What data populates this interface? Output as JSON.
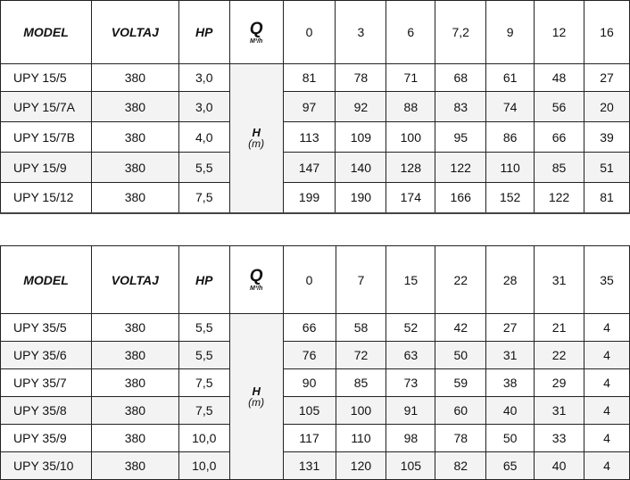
{
  "headers": {
    "model": "MODEL",
    "voltaj": "VOLTAJ",
    "hp": "HP",
    "q_symbol": "Q",
    "q_unit": "M³/h",
    "h_symbol": "H",
    "h_unit": "(m)"
  },
  "table1": {
    "q_values": [
      "0",
      "3",
      "6",
      "7,2",
      "9",
      "12",
      "16"
    ],
    "rows": [
      {
        "model": "UPY 15/5",
        "voltaj": "380",
        "hp": "3,0",
        "h": [
          "81",
          "78",
          "71",
          "68",
          "61",
          "48",
          "27"
        ]
      },
      {
        "model": "UPY 15/7A",
        "voltaj": "380",
        "hp": "3,0",
        "h": [
          "97",
          "92",
          "88",
          "83",
          "74",
          "56",
          "20"
        ]
      },
      {
        "model": "UPY 15/7B",
        "voltaj": "380",
        "hp": "4,0",
        "h": [
          "113",
          "109",
          "100",
          "95",
          "86",
          "66",
          "39"
        ]
      },
      {
        "model": "UPY 15/9",
        "voltaj": "380",
        "hp": "5,5",
        "h": [
          "147",
          "140",
          "128",
          "122",
          "110",
          "85",
          "51"
        ]
      },
      {
        "model": "UPY 15/12",
        "voltaj": "380",
        "hp": "7,5",
        "h": [
          "199",
          "190",
          "174",
          "166",
          "152",
          "122",
          "81"
        ]
      }
    ]
  },
  "table2": {
    "q_values": [
      "0",
      "7",
      "15",
      "22",
      "28",
      "31",
      "35"
    ],
    "rows": [
      {
        "model": "UPY 35/5",
        "voltaj": "380",
        "hp": "5,5",
        "h": [
          "66",
          "58",
          "52",
          "42",
          "27",
          "21",
          "4"
        ]
      },
      {
        "model": "UPY 35/6",
        "voltaj": "380",
        "hp": "5,5",
        "h": [
          "76",
          "72",
          "63",
          "50",
          "31",
          "22",
          "4"
        ]
      },
      {
        "model": "UPY 35/7",
        "voltaj": "380",
        "hp": "7,5",
        "h": [
          "90",
          "85",
          "73",
          "59",
          "38",
          "29",
          "4"
        ]
      },
      {
        "model": "UPY 35/8",
        "voltaj": "380",
        "hp": "7,5",
        "h": [
          "105",
          "100",
          "91",
          "60",
          "40",
          "31",
          "4"
        ]
      },
      {
        "model": "UPY 35/9",
        "voltaj": "380",
        "hp": "10,0",
        "h": [
          "117",
          "110",
          "98",
          "78",
          "50",
          "33",
          "4"
        ]
      },
      {
        "model": "UPY 35/10",
        "voltaj": "380",
        "hp": "10,0",
        "h": [
          "131",
          "120",
          "105",
          "82",
          "65",
          "40",
          "4"
        ]
      }
    ]
  }
}
